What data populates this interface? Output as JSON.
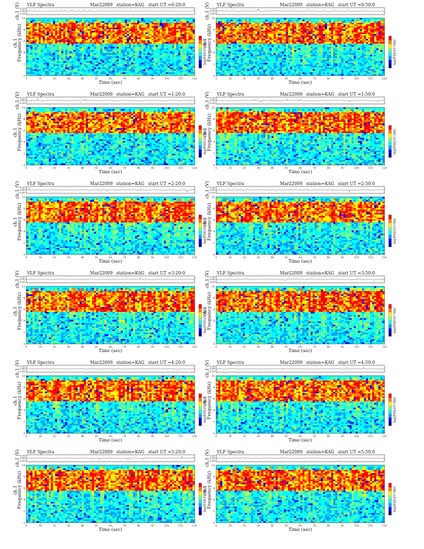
{
  "figure": {
    "title_prefix": "VLF Spectra",
    "date": "Mar22009",
    "station": "station=KAG",
    "start_prefix": "start UT ="
  },
  "axes": {
    "top_ylabel": "ch.1 (V)",
    "top_yticks": [
      "0.20",
      "0.00",
      "-0.20"
    ],
    "spec_ylabel_line1": "ch.1",
    "spec_ylabel_line2": "Frequency (kHz)",
    "spec_yticks": [
      "0",
      "2",
      "4",
      "6",
      "8",
      "10"
    ],
    "xlabel": "Time (sec)",
    "xticks": [
      "0",
      "10",
      "20",
      "30",
      "40",
      "50",
      "60",
      "70",
      "80",
      "90",
      "100",
      "110",
      "120"
    ],
    "colorbar_label": "log(PSD)(V²/Hz)",
    "colorbar_tick": "-"
  },
  "chart_data": {
    "type": "heatmap",
    "description_units": {
      "x": "Time (sec)",
      "y": "Frequency (kHz)",
      "z": "log(PSD)(V²/Hz)"
    },
    "xlim": [
      0,
      120
    ],
    "ylim": [
      0,
      10
    ],
    "grid": false,
    "colormap": [
      "#00007f",
      "#0000ff",
      "#00a0ff",
      "#00ffff",
      "#80ff80",
      "#ffff00",
      "#ff8000",
      "#ff0000"
    ],
    "panels": [
      {
        "start_ut": "0:20:0",
        "seed": 3
      },
      {
        "start_ut": "0:50:0",
        "seed": 11
      },
      {
        "start_ut": "1:20:0",
        "seed": 17
      },
      {
        "start_ut": "1:50:0",
        "seed": 23
      },
      {
        "start_ut": "2:20:0",
        "seed": 29
      },
      {
        "start_ut": "2:50:0",
        "seed": 37
      },
      {
        "start_ut": "3:20:0",
        "seed": 41
      },
      {
        "start_ut": "3:50:0",
        "seed": 47
      },
      {
        "start_ut": "4:20:0",
        "seed": 53
      },
      {
        "start_ut": "4:50:0",
        "seed": 59
      },
      {
        "start_ut": "5:20:0",
        "seed": 61
      },
      {
        "start_ut": "5:50:0",
        "seed": 67
      }
    ]
  }
}
